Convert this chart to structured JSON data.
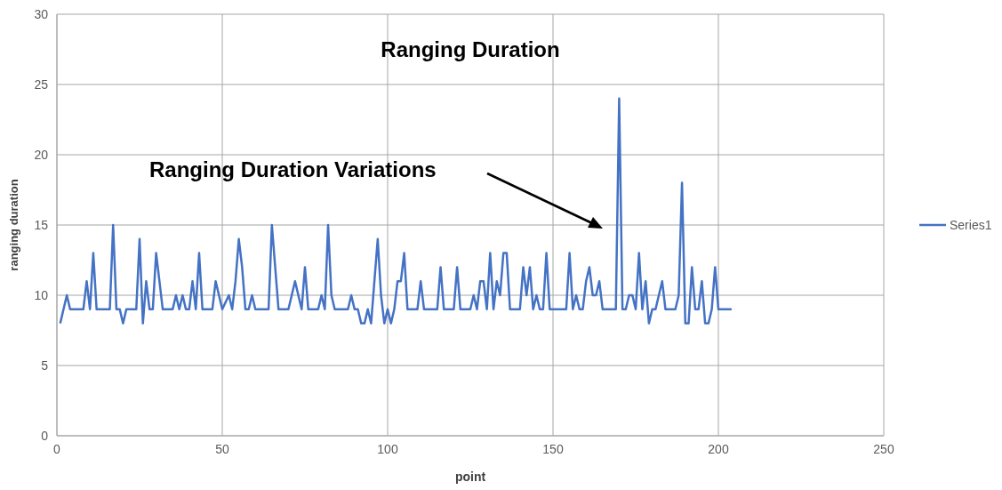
{
  "chart_data": {
    "type": "line",
    "title": "Ranging Duration",
    "xlabel": "point",
    "ylabel": "ranging duration",
    "xlim": [
      0,
      250
    ],
    "xticks": [
      0,
      50,
      100,
      150,
      200,
      250
    ],
    "ylim": [
      0,
      30
    ],
    "yticks": [
      0,
      5,
      10,
      15,
      20,
      25,
      30
    ],
    "grid": true,
    "legend": "right",
    "marker": "none",
    "line_style": "solid",
    "annotations": [
      "Ranging Duration Variations"
    ],
    "series": [
      {
        "name": "Series1",
        "color": "#4472c4",
        "x": [
          1,
          3,
          4,
          8,
          9,
          10,
          11,
          12,
          16,
          17,
          18,
          19,
          20,
          21,
          24,
          25,
          26,
          27,
          28,
          29,
          30,
          31,
          32,
          35,
          36,
          37,
          38,
          39,
          40,
          41,
          42,
          43,
          44,
          47,
          48,
          49,
          50,
          52,
          53,
          54,
          55,
          56,
          57,
          58,
          59,
          60,
          64,
          65,
          66,
          67,
          70,
          71,
          72,
          73,
          74,
          75,
          76,
          79,
          80,
          81,
          82,
          83,
          84,
          88,
          89,
          90,
          91,
          92,
          93,
          94,
          95,
          96,
          97,
          98,
          99,
          100,
          101,
          102,
          103,
          104,
          105,
          106,
          109,
          110,
          111,
          115,
          116,
          117,
          120,
          121,
          122,
          125,
          126,
          127,
          128,
          129,
          130,
          131,
          132,
          133,
          134,
          135,
          136,
          137,
          140,
          141,
          142,
          143,
          144,
          145,
          146,
          147,
          148,
          149,
          154,
          155,
          156,
          157,
          158,
          159,
          160,
          161,
          162,
          163,
          164,
          165,
          169,
          170,
          171,
          172,
          173,
          174,
          175,
          176,
          177,
          178,
          179,
          180,
          181,
          182,
          183,
          184,
          187,
          188,
          189,
          190,
          191,
          192,
          193,
          194,
          195,
          196,
          197,
          198,
          199,
          200,
          204
        ],
        "values": [
          8,
          10,
          9,
          9,
          11,
          9,
          13,
          9,
          9,
          15,
          9,
          9,
          8,
          9,
          9,
          14,
          8,
          11,
          9,
          9,
          13,
          11,
          9,
          9,
          10,
          9,
          10,
          9,
          9,
          11,
          9,
          13,
          9,
          9,
          11,
          10,
          9,
          10,
          9,
          11,
          14,
          12,
          9,
          9,
          10,
          9,
          9,
          15,
          12,
          9,
          9,
          10,
          11,
          10,
          9,
          12,
          9,
          9,
          10,
          9,
          15,
          10,
          9,
          9,
          10,
          9,
          9,
          8,
          8,
          9,
          8,
          11,
          14,
          10,
          8,
          9,
          8,
          9,
          11,
          11,
          13,
          9,
          9,
          11,
          9,
          9,
          12,
          9,
          9,
          12,
          9,
          9,
          10,
          9,
          11,
          11,
          9,
          13,
          9,
          11,
          10,
          13,
          13,
          9,
          9,
          12,
          10,
          12,
          9,
          10,
          9,
          9,
          13,
          9,
          9,
          13,
          9,
          10,
          9,
          9,
          11,
          12,
          10,
          10,
          11,
          9,
          9,
          24,
          9,
          9,
          10,
          10,
          9,
          13,
          9,
          11,
          8,
          9,
          9,
          10,
          11,
          9,
          9,
          10,
          18,
          8,
          8,
          12,
          9,
          9,
          11,
          8,
          8,
          9,
          12,
          9,
          9
        ]
      }
    ]
  }
}
